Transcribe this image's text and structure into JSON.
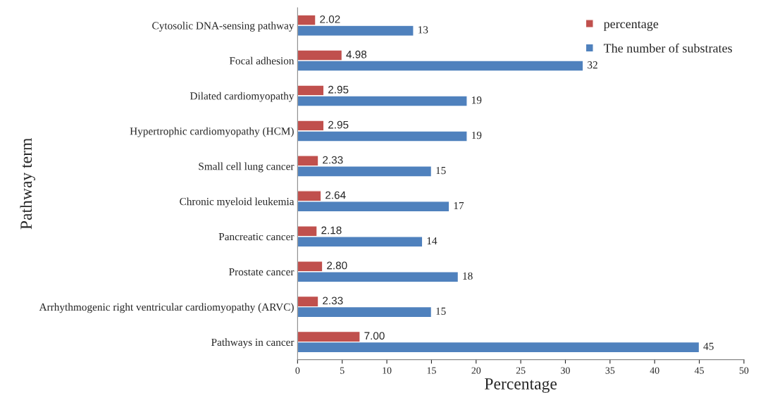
{
  "chart_data": {
    "type": "bar",
    "orientation": "horizontal",
    "xlabel": "Percentage",
    "ylabel": "Pathway term",
    "categories": [
      "Cytosolic DNA-sensing pathway",
      "Focal adhesion",
      "Dilated cardiomyopathy",
      "Hypertrophic cardiomyopathy (HCM)",
      "Small cell lung cancer",
      "Chronic myeloid leukemia",
      "Pancreatic cancer",
      "Prostate cancer",
      "Arrhythmogenic right ventricular cardiomyopathy (ARVC)",
      "Pathways in cancer"
    ],
    "series": [
      {
        "name": "percentage",
        "color": "#c0504d",
        "values": [
          2.02,
          4.98,
          2.95,
          2.95,
          2.33,
          2.64,
          2.18,
          2.8,
          2.33,
          7.0
        ],
        "value_labels": [
          "2.02",
          "4.98",
          "2.95",
          "2.95",
          "2.33",
          "2.64",
          "2.18",
          "2.80",
          "2.33",
          "7.00"
        ]
      },
      {
        "name": "The number of substrates",
        "color": "#4f81bd",
        "values": [
          13,
          32,
          19,
          19,
          15,
          17,
          14,
          18,
          15,
          45
        ],
        "value_labels": [
          "13",
          "32",
          "19",
          "19",
          "15",
          "17",
          "14",
          "18",
          "15",
          "45"
        ]
      }
    ],
    "xlim": [
      0,
      50
    ],
    "xticks": [
      0,
      5,
      10,
      15,
      20,
      25,
      30,
      35,
      40,
      45,
      50
    ],
    "grid": false,
    "legend": "top right"
  }
}
